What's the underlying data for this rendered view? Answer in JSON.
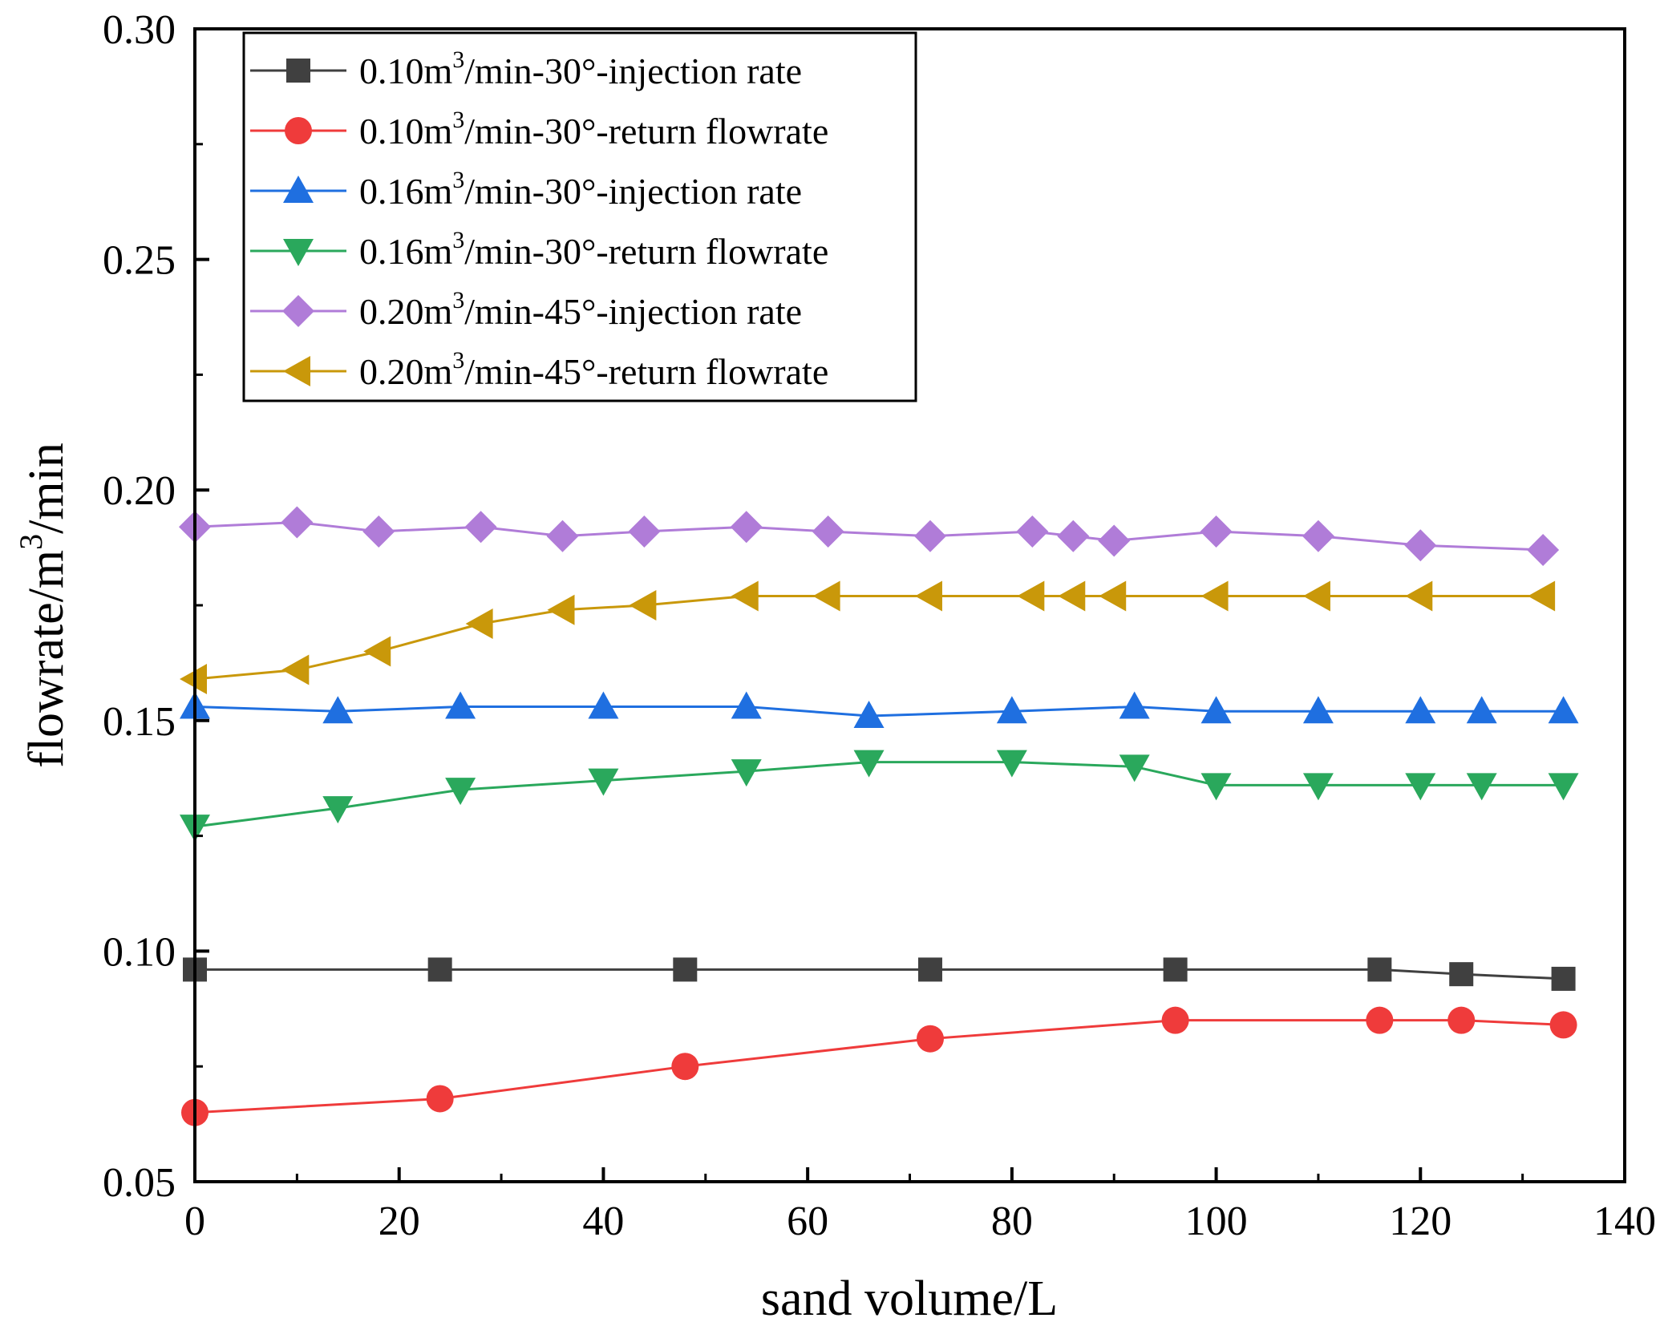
{
  "chart_data": {
    "type": "line",
    "xlabel": "sand volume/L",
    "ylabel": "flowrate/m³/min",
    "xlim": [
      0,
      140
    ],
    "ylim": [
      0.05,
      0.3
    ],
    "x_ticks": [
      "0",
      "20",
      "40",
      "60",
      "80",
      "100",
      "120",
      "140"
    ],
    "y_ticks": [
      "0.05",
      "0.10",
      "0.15",
      "0.20",
      "0.25",
      "0.30"
    ],
    "legend_position": "top-left",
    "grid": false,
    "series": [
      {
        "name": "0.10m3/min-30°-injection rate",
        "name_parts": [
          "0.10m",
          "3",
          "/min-30°-injection rate"
        ],
        "color": "#404040",
        "marker": "square",
        "x": [
          0,
          24,
          48,
          72,
          96,
          116,
          124,
          134
        ],
        "y": [
          0.096,
          0.096,
          0.096,
          0.096,
          0.096,
          0.096,
          0.095,
          0.094
        ]
      },
      {
        "name": "0.10m3/min-30°-return flowrate",
        "name_parts": [
          "0.10m",
          "3",
          "/min-30°-return flowrate"
        ],
        "color": "#ef3b3b",
        "marker": "circle",
        "x": [
          0,
          24,
          48,
          72,
          96,
          116,
          124,
          134
        ],
        "y": [
          0.065,
          0.068,
          0.075,
          0.081,
          0.085,
          0.085,
          0.085,
          0.084
        ]
      },
      {
        "name": "0.16m3/min-30°-injection rate",
        "name_parts": [
          "0.16m",
          "3",
          "/min-30°-injection rate"
        ],
        "color": "#1f6fe0",
        "marker": "triangle-up",
        "x": [
          0,
          14,
          26,
          40,
          54,
          66,
          80,
          92,
          100,
          110,
          120,
          126,
          134
        ],
        "y": [
          0.153,
          0.152,
          0.153,
          0.153,
          0.153,
          0.151,
          0.152,
          0.153,
          0.152,
          0.152,
          0.152,
          0.152,
          0.152
        ]
      },
      {
        "name": "0.16m3/min-30°-return flowrate",
        "name_parts": [
          "0.16m",
          "3",
          "/min-30°-return flowrate"
        ],
        "color": "#2aa85c",
        "marker": "triangle-down",
        "x": [
          0,
          14,
          26,
          40,
          54,
          66,
          80,
          92,
          100,
          110,
          120,
          126,
          134
        ],
        "y": [
          0.127,
          0.131,
          0.135,
          0.137,
          0.139,
          0.141,
          0.141,
          0.14,
          0.136,
          0.136,
          0.136,
          0.136,
          0.136
        ]
      },
      {
        "name": "0.20m3/min-45°-injection rate",
        "name_parts": [
          "0.20m",
          "3",
          "/min-45°-injection rate"
        ],
        "color": "#b07cd8",
        "marker": "diamond",
        "x": [
          0,
          10,
          18,
          28,
          36,
          44,
          54,
          62,
          72,
          82,
          86,
          90,
          100,
          110,
          120,
          132
        ],
        "y": [
          0.192,
          0.193,
          0.191,
          0.192,
          0.19,
          0.191,
          0.192,
          0.191,
          0.19,
          0.191,
          0.19,
          0.189,
          0.191,
          0.19,
          0.188,
          0.187
        ]
      },
      {
        "name": "0.20m3/min-45°-return flowrate",
        "name_parts": [
          "0.20m",
          "3",
          "/min-45°-return flowrate"
        ],
        "color": "#c9980a",
        "marker": "triangle-left",
        "x": [
          0,
          10,
          18,
          28,
          36,
          44,
          54,
          62,
          72,
          82,
          86,
          90,
          100,
          110,
          120,
          132
        ],
        "y": [
          0.159,
          0.161,
          0.165,
          0.171,
          0.174,
          0.175,
          0.177,
          0.177,
          0.177,
          0.177,
          0.177,
          0.177,
          0.177,
          0.177,
          0.177,
          0.177
        ]
      }
    ]
  }
}
